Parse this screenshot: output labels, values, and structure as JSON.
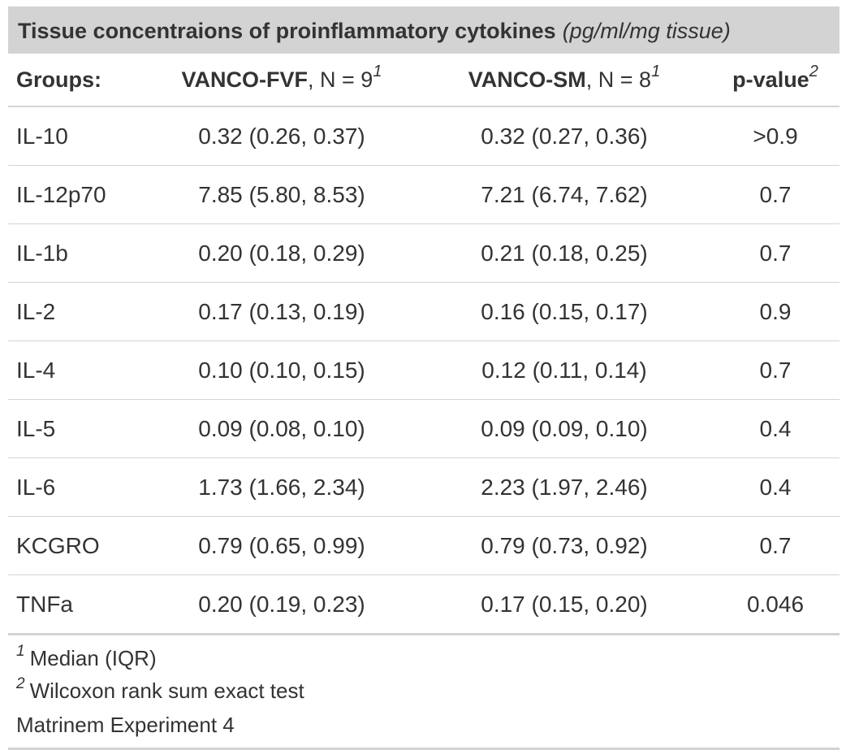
{
  "title": {
    "main": "Tissue concentraions of proinflammatory cytokines",
    "unit": "(pg/ml/mg tissue)"
  },
  "header": {
    "groups": "Groups:",
    "col1_bold": "VANCO-FVF",
    "col1_n": ", N = 9",
    "col1_sup": "1",
    "col2_bold": "VANCO-SM",
    "col2_n": ", N = 8",
    "col2_sup": "1",
    "col3_bold": "p-value",
    "col3_sup": "2"
  },
  "rows": [
    {
      "label": "IL-10",
      "fvf": "0.32 (0.26, 0.37)",
      "sm": "0.32 (0.27, 0.36)",
      "p": ">0.9"
    },
    {
      "label": "IL-12p70",
      "fvf": "7.85 (5.80, 8.53)",
      "sm": "7.21 (6.74, 7.62)",
      "p": "0.7"
    },
    {
      "label": "IL-1b",
      "fvf": "0.20 (0.18, 0.29)",
      "sm": "0.21 (0.18, 0.25)",
      "p": "0.7"
    },
    {
      "label": "IL-2",
      "fvf": "0.17 (0.13, 0.19)",
      "sm": "0.16 (0.15, 0.17)",
      "p": "0.9"
    },
    {
      "label": "IL-4",
      "fvf": "0.10 (0.10, 0.15)",
      "sm": "0.12 (0.11, 0.14)",
      "p": "0.7"
    },
    {
      "label": "IL-5",
      "fvf": "0.09 (0.08, 0.10)",
      "sm": "0.09 (0.09, 0.10)",
      "p": "0.4"
    },
    {
      "label": "IL-6",
      "fvf": "1.73 (1.66, 2.34)",
      "sm": "2.23 (1.97, 2.46)",
      "p": "0.4"
    },
    {
      "label": "KCGRO",
      "fvf": "0.79 (0.65, 0.99)",
      "sm": "0.79 (0.73, 0.92)",
      "p": "0.7"
    },
    {
      "label": "TNFa",
      "fvf": "0.20 (0.19, 0.23)",
      "sm": "0.17 (0.15, 0.20)",
      "p": "0.046"
    }
  ],
  "footnotes": {
    "fn1_mark": "1",
    "fn1_text": "Median (IQR)",
    "fn2_mark": "2",
    "fn2_text": "Wilcoxon rank sum exact test",
    "source": "Matrinem Experiment 4"
  },
  "colors": {
    "header_bg": "#d3d3d3",
    "rule": "#d3d3d3",
    "text": "#333333"
  }
}
